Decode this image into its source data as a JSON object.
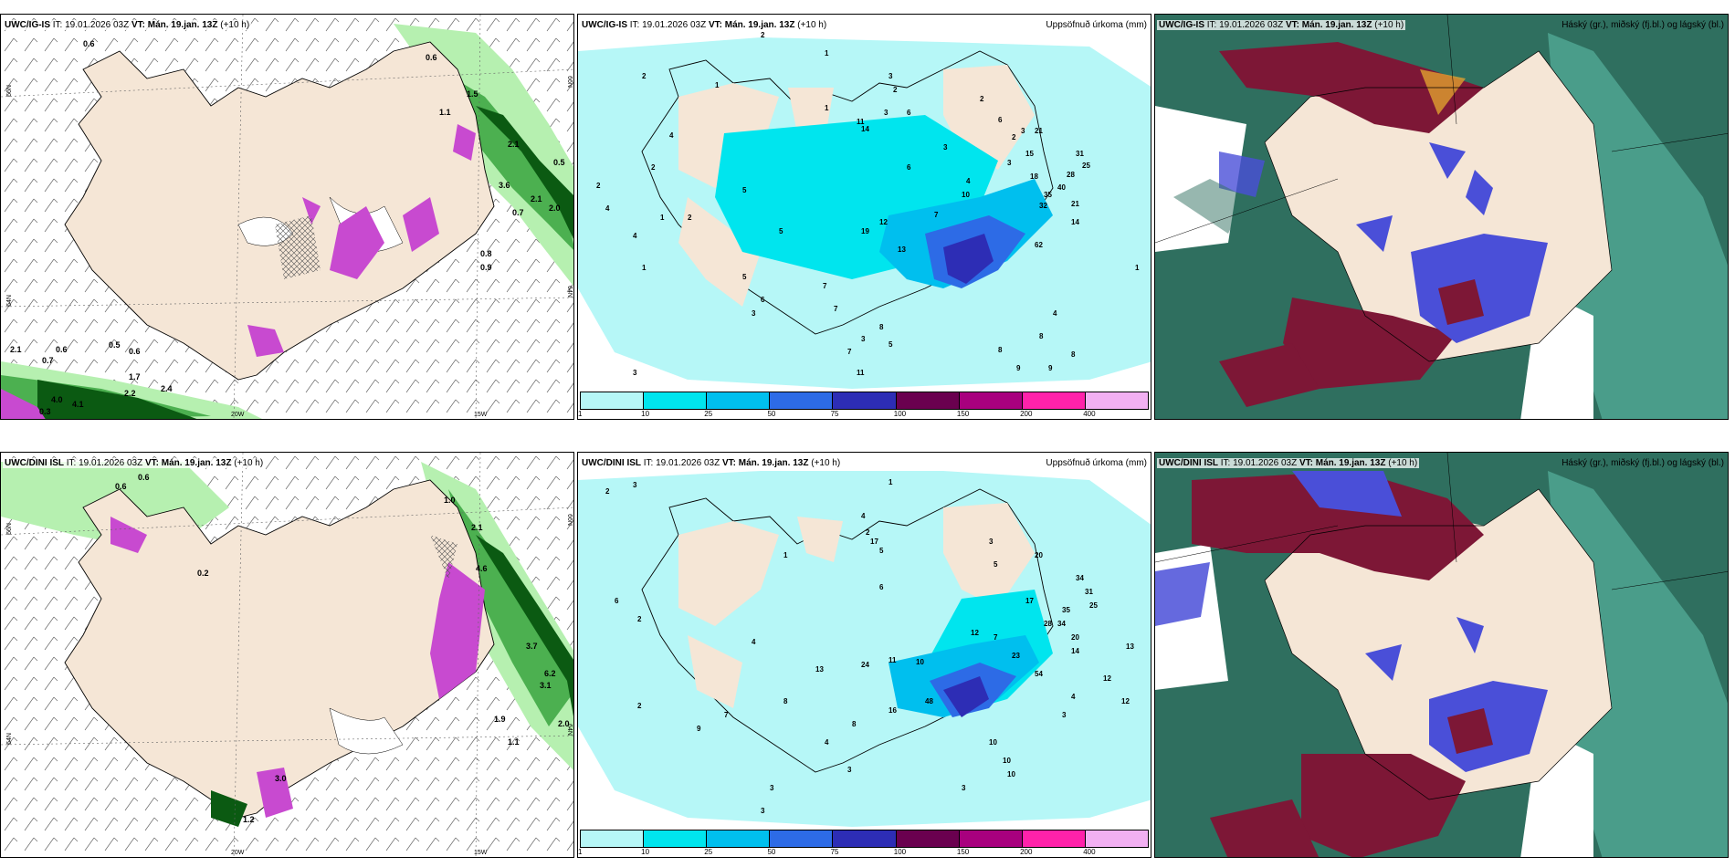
{
  "colors": {
    "land": "#f5e6d6",
    "precip_levels": [
      "#b6f7f7",
      "#00e5ee",
      "#00bfee",
      "#2d6be6",
      "#2d2db5",
      "#6a004f",
      "#a8007e",
      "#ff22aa",
      "#f2b0f2"
    ],
    "wind_green_light": "#b6f0b0",
    "wind_green_mid": "#4cb050",
    "wind_green_dark": "#0b5a12",
    "magenta": "#c84ad0",
    "cloud_high": "#7d1736",
    "cloud_mid": "#4a4fd8",
    "cloud_low": "#2f6f5f"
  },
  "panels": [
    {
      "model": "UWC/IG-IS",
      "it": "IT: 19.01.2026 03Z",
      "vt_label": "VT:",
      "vt": "Mán. 19.jan. 13Z",
      "lead": "(+10 h)",
      "right_title": "",
      "type": "wind"
    },
    {
      "model": "UWC/IG-IS",
      "it": "IT: 19.01.2026 03Z",
      "vt_label": "VT:",
      "vt": "Mán. 19.jan. 13Z",
      "lead": "(+10 h)",
      "right_title": "Uppsöfnuð úrkoma (mm)",
      "type": "precip"
    },
    {
      "model": "UWC/IG-IS",
      "it": "IT: 19.01.2026 03Z",
      "vt_label": "VT:",
      "vt": "Mán. 19.jan. 13Z",
      "lead": "(+10 h)",
      "right_title": "Háský (gr.), miðský (fj.bl.) og lágský (bl.)",
      "type": "cloud"
    },
    {
      "model": "UWC/DINI ISL",
      "it": "IT: 19.01.2026 03Z",
      "vt_label": "VT:",
      "vt": "Mán. 19.jan. 13Z",
      "lead": "(+10 h)",
      "right_title": "",
      "type": "wind"
    },
    {
      "model": "UWC/DINI ISL",
      "it": "IT: 19.01.2026 03Z",
      "vt_label": "VT:",
      "vt": "Mán. 19.jan. 13Z",
      "lead": "(+10 h)",
      "right_title": "Uppsöfnuð úrkoma (mm)",
      "type": "precip"
    },
    {
      "model": "UWC/DINI ISL",
      "it": "IT: 19.01.2026 03Z",
      "vt_label": "VT:",
      "vt": "Mán. 19.jan. 13Z",
      "lead": "(+10 h)",
      "right_title": "Háský (gr.), miðský (fj.bl.) og lágský (bl.)",
      "type": "cloud"
    }
  ],
  "precip_legend_ticks": [
    "1",
    "10",
    "25",
    "50",
    "75",
    "100",
    "150",
    "200",
    "400"
  ],
  "axis_labels": {
    "lat66": "66N",
    "lat64": "64N",
    "lon20": "20W",
    "lon15": "15W"
  },
  "wind_labels_top": [
    "0.6",
    "0.6",
    "1.1",
    "1.5",
    "2.1",
    "3.6",
    "0.5",
    "2.1",
    "2.0",
    "0.7",
    "0.8",
    "0.9",
    "2.1",
    "0.6",
    "0.5",
    "0.6",
    "0.7",
    "1.7",
    "2.4",
    "2.2",
    "4.0",
    "4.1",
    "0.3"
  ],
  "wind_labels_bottom": [
    "0.6",
    "0.6",
    "1.0",
    "2.1",
    "0.2",
    "4.6",
    "3.7",
    "6.2",
    "3.1",
    "2.0",
    "1.9",
    "1.1",
    "3.0",
    "1.2"
  ],
  "precip_labels_top": [
    "2",
    "1",
    "2",
    "1",
    "3",
    "2",
    "4",
    "1",
    "11",
    "14",
    "3",
    "6",
    "2",
    "6",
    "3",
    "2",
    "3",
    "6",
    "3",
    "15",
    "21",
    "31",
    "28",
    "25",
    "18",
    "35",
    "32",
    "40",
    "21",
    "14",
    "62",
    "7",
    "10",
    "4",
    "19",
    "12",
    "13",
    "2",
    "5",
    "6",
    "7",
    "7",
    "8",
    "3",
    "7",
    "11",
    "5",
    "8",
    "9",
    "9",
    "8",
    "8",
    "4",
    "3",
    "2",
    "4",
    "4",
    "1",
    "2",
    "1",
    "3",
    "1",
    "5",
    "5"
  ],
  "precip_labels_bottom": [
    "2",
    "3",
    "1",
    "1",
    "4",
    "2",
    "5",
    "17",
    "6",
    "3",
    "5",
    "20",
    "34",
    "31",
    "35",
    "28",
    "34",
    "25",
    "20",
    "17",
    "14",
    "23",
    "24",
    "11",
    "10",
    "12",
    "7",
    "54",
    "16",
    "48",
    "13",
    "12",
    "12",
    "4",
    "3",
    "10",
    "10",
    "10",
    "3",
    "4",
    "8",
    "2",
    "9",
    "7",
    "3",
    "3",
    "6",
    "2",
    "3",
    "4",
    "13",
    "8"
  ]
}
